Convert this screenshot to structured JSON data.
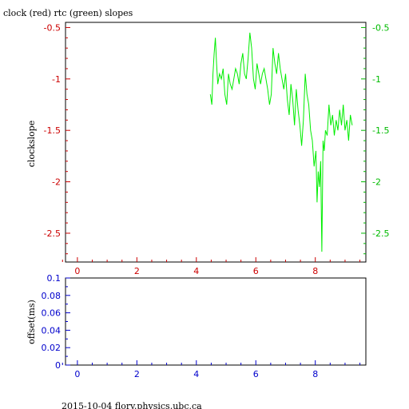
{
  "title": "clock (red) rtc (green) slopes",
  "footer": "2015-10-04 flory.physics.ubc.ca",
  "colors": {
    "axis_red": "#cc0000",
    "axis_green": "#00bb00",
    "axis_blue": "#0000cc",
    "series_green": "#00ee00",
    "frame": "#000000"
  },
  "chart_data": [
    {
      "type": "line",
      "ylabel": "clockslope",
      "xlim": [
        -0.4,
        9.7
      ],
      "ylim": [
        -2.78,
        -0.45
      ],
      "x_ticks": [
        0,
        2,
        4,
        6,
        8
      ],
      "x_tick_labels": [
        "0",
        "2",
        "4",
        "6",
        "8"
      ],
      "y_ticks": [
        -2.5,
        -2,
        -1.5,
        -1,
        -0.5
      ],
      "y_tick_labels_left": [
        "-2.5",
        "-2",
        "-1.5",
        "-1",
        "-0.5"
      ],
      "y_tick_labels_right": [
        "-2.5",
        "-2",
        "-1.5",
        "-1",
        "-0.5"
      ],
      "grid": false,
      "series": [
        {
          "color": "#00ee00",
          "x": [
            4.47,
            4.52,
            4.56,
            4.6,
            4.64,
            4.68,
            4.72,
            4.78,
            4.84,
            4.9,
            4.96,
            5.02,
            5.08,
            5.14,
            5.2,
            5.26,
            5.32,
            5.38,
            5.44,
            5.5,
            5.56,
            5.62,
            5.68,
            5.74,
            5.8,
            5.86,
            5.92,
            5.98,
            6.04,
            6.1,
            6.16,
            6.22,
            6.28,
            6.34,
            6.4,
            6.46,
            6.52,
            6.58,
            6.64,
            6.7,
            6.76,
            6.82,
            6.88,
            6.94,
            7.0,
            7.06,
            7.12,
            7.18,
            7.24,
            7.3,
            7.36,
            7.42,
            7.48,
            7.54,
            7.6,
            7.66,
            7.72,
            7.78,
            7.84,
            7.9,
            7.96,
            8.02,
            8.06,
            8.1,
            8.14,
            8.18,
            8.22,
            8.26,
            8.3,
            8.34,
            8.4,
            8.46,
            8.52,
            8.58,
            8.64,
            8.7,
            8.76,
            8.82,
            8.88,
            8.94,
            9.0,
            9.06,
            9.12,
            9.18,
            9.24
          ],
          "y": [
            -1.15,
            -1.25,
            -0.95,
            -0.75,
            -0.6,
            -0.85,
            -1.05,
            -0.95,
            -1.0,
            -0.9,
            -1.15,
            -1.25,
            -0.95,
            -1.05,
            -1.1,
            -1.0,
            -0.9,
            -0.95,
            -1.05,
            -0.85,
            -0.75,
            -0.95,
            -1.0,
            -0.8,
            -0.55,
            -0.7,
            -1.0,
            -1.1,
            -0.85,
            -0.95,
            -1.05,
            -0.95,
            -0.9,
            -1.0,
            -1.1,
            -1.25,
            -1.15,
            -0.7,
            -0.85,
            -0.95,
            -0.75,
            -0.9,
            -1.0,
            -1.1,
            -0.95,
            -1.2,
            -1.35,
            -1.05,
            -1.2,
            -1.45,
            -1.1,
            -1.3,
            -1.45,
            -1.65,
            -1.4,
            -0.95,
            -1.15,
            -1.25,
            -1.5,
            -1.6,
            -1.85,
            -1.7,
            -2.2,
            -1.9,
            -2.05,
            -1.8,
            -2.68,
            -1.6,
            -1.7,
            -1.5,
            -1.55,
            -1.25,
            -1.45,
            -1.35,
            -1.55,
            -1.4,
            -1.5,
            -1.3,
            -1.45,
            -1.25,
            -1.5,
            -1.4,
            -1.6,
            -1.35,
            -1.45
          ]
        }
      ]
    },
    {
      "type": "line",
      "ylabel": "offset(ms)",
      "xlim": [
        -0.4,
        9.7
      ],
      "ylim": [
        0,
        0.1
      ],
      "x_ticks": [
        0,
        2,
        4,
        6,
        8
      ],
      "x_tick_labels": [
        "0",
        "2",
        "4",
        "6",
        "8"
      ],
      "y_ticks": [
        0,
        0.02,
        0.04,
        0.06,
        0.08,
        0.1
      ],
      "y_tick_labels": [
        "0",
        "0.02",
        "0.04",
        "0.06",
        "0.08",
        "0.1"
      ],
      "grid": false,
      "series": []
    }
  ]
}
